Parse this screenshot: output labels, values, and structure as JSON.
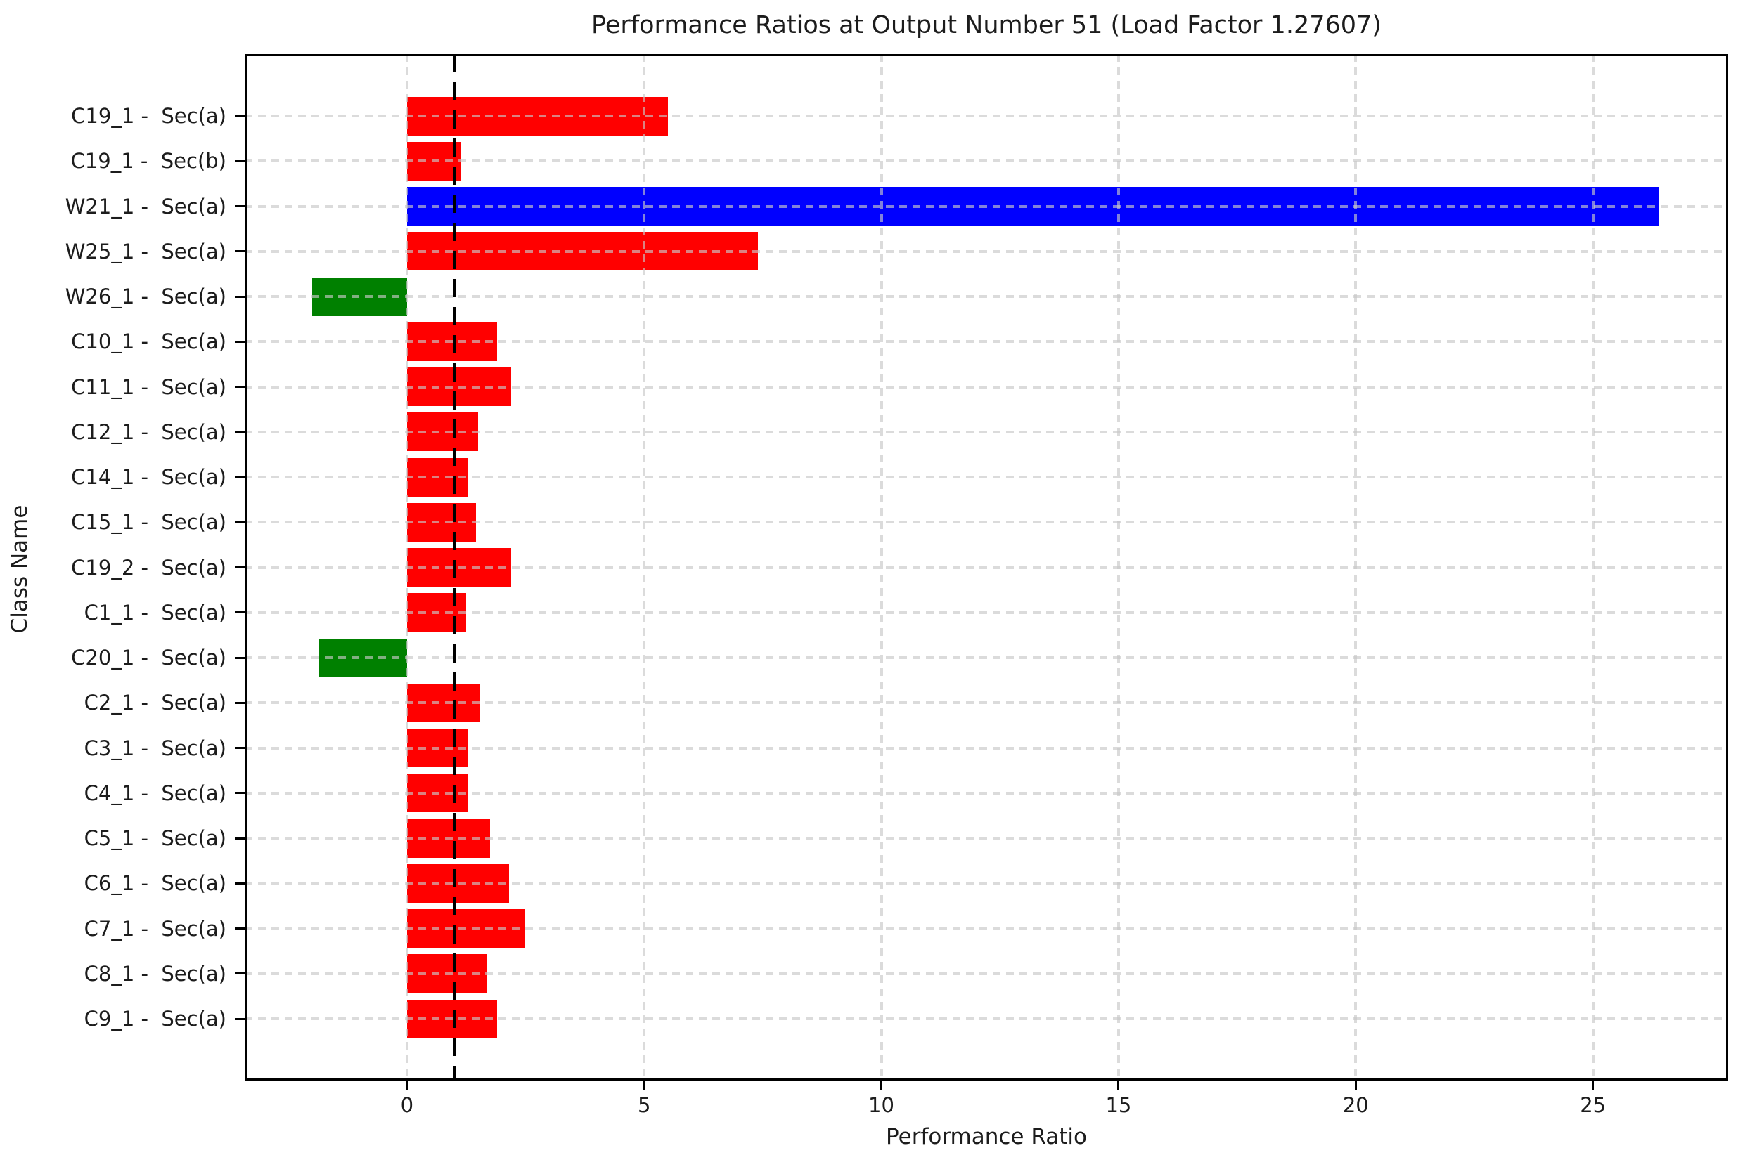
{
  "chart_data": {
    "type": "bar",
    "orientation": "horizontal",
    "title": "Performance Ratios at Output Number 51 (Load Factor 1.27607)",
    "xlabel": "Performance Ratio",
    "ylabel": "Class Name",
    "categories": [
      "C19_1 -  Sec(a)",
      "C19_1 -  Sec(b)",
      "W21_1 -  Sec(a)",
      "W25_1 -  Sec(a)",
      "W26_1 -  Sec(a)",
      "C10_1 -  Sec(a)",
      "C11_1 -  Sec(a)",
      "C12_1 -  Sec(a)",
      "C14_1 -  Sec(a)",
      "C15_1 -  Sec(a)",
      "C19_2 -  Sec(a)",
      "C1_1 -  Sec(a)",
      "C20_1 -  Sec(a)",
      "C2_1 -  Sec(a)",
      "C3_1 -  Sec(a)",
      "C4_1 -  Sec(a)",
      "C5_1 -  Sec(a)",
      "C6_1 -  Sec(a)",
      "C7_1 -  Sec(a)",
      "C8_1 -  Sec(a)",
      "C9_1 -  Sec(a)"
    ],
    "values": [
      5.5,
      1.15,
      26.4,
      7.4,
      -2.0,
      1.9,
      2.2,
      1.5,
      1.3,
      1.45,
      2.2,
      1.25,
      -1.85,
      1.55,
      1.3,
      1.3,
      1.75,
      2.15,
      2.5,
      1.7,
      1.9
    ],
    "bar_colors": [
      "red",
      "red",
      "blue",
      "red",
      "green",
      "red",
      "red",
      "red",
      "red",
      "red",
      "red",
      "red",
      "green",
      "red",
      "red",
      "red",
      "red",
      "red",
      "red",
      "red",
      "red"
    ],
    "colors": {
      "red": "#ff0000",
      "blue": "#0000ff",
      "green": "#008000",
      "reference_line": "#000000",
      "grid": "#c8c8c8",
      "text": "#1c1c1c"
    },
    "x_ticks": [
      0,
      5,
      10,
      15,
      20,
      25
    ],
    "xlim": [
      -3.42,
      27.85
    ],
    "reference_line_x": 1.0,
    "grid": true,
    "legend": "none"
  }
}
